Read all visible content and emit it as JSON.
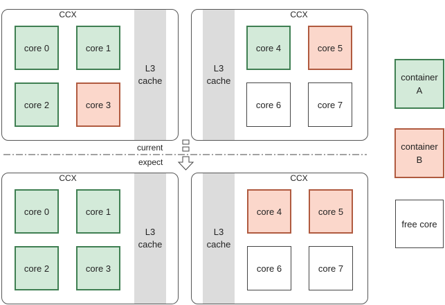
{
  "ccx_label": "CCX",
  "l3": {
    "line1": "L3",
    "line2": "cache"
  },
  "current": {
    "label": "current",
    "ccx": [
      {
        "cores": [
          {
            "label": "core 0",
            "state": "a"
          },
          {
            "label": "core 1",
            "state": "a"
          },
          {
            "label": "core 2",
            "state": "a"
          },
          {
            "label": "core 3",
            "state": "b"
          }
        ]
      },
      {
        "cores": [
          {
            "label": "core 4",
            "state": "a"
          },
          {
            "label": "core 5",
            "state": "b"
          },
          {
            "label": "core 6",
            "state": "free"
          },
          {
            "label": "core 7",
            "state": "free"
          }
        ]
      }
    ]
  },
  "expect": {
    "label": "expect",
    "ccx": [
      {
        "cores": [
          {
            "label": "core 0",
            "state": "a"
          },
          {
            "label": "core 1",
            "state": "a"
          },
          {
            "label": "core 2",
            "state": "a"
          },
          {
            "label": "core 3",
            "state": "a"
          }
        ]
      },
      {
        "cores": [
          {
            "label": "core 4",
            "state": "b"
          },
          {
            "label": "core 5",
            "state": "b"
          },
          {
            "label": "core 6",
            "state": "free"
          },
          {
            "label": "core 7",
            "state": "free"
          }
        ]
      }
    ]
  },
  "legend": {
    "container_a": {
      "line1": "container",
      "line2": "A"
    },
    "container_b": {
      "line1": "container",
      "line2": "B"
    },
    "free": {
      "label": "free core"
    }
  },
  "colors": {
    "container_a_fill": "#d3ead9",
    "container_a_border": "#3f7f52",
    "container_b_fill": "#fbd7cb",
    "container_b_border": "#b05a3f",
    "l3_fill": "#dcdcdc"
  }
}
